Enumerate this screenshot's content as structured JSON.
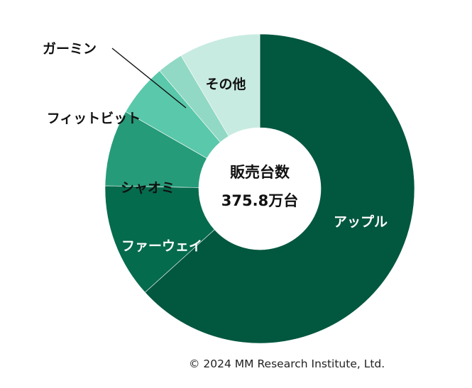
{
  "chart_data": {
    "type": "pie",
    "variant": "donut",
    "center_title": "販売台数",
    "center_value": "375.8万台",
    "slices": [
      {
        "label": "アップル",
        "value": 63.3,
        "color": "#02573F",
        "label_color": "#ffffff"
      },
      {
        "label": "ファーウェイ",
        "value": 12.0,
        "color": "#046B4C",
        "label_color": "#ffffff"
      },
      {
        "label": "シャオミ",
        "value": 8.0,
        "color": "#269B79",
        "label_color": "#111111"
      },
      {
        "label": "フィットビット",
        "value": 5.5,
        "color": "#5AC8AB",
        "label_color": "#111111"
      },
      {
        "label": "ガーミン",
        "value": 2.7,
        "color": "#91D9C4",
        "label_color": "#111111"
      },
      {
        "label": "その他",
        "value": 8.5,
        "color": "#C8EBE1",
        "label_color": "#111111"
      }
    ],
    "legend": "none"
  },
  "footer": {
    "copyright": "© 2024 MM Research Institute, Ltd."
  }
}
